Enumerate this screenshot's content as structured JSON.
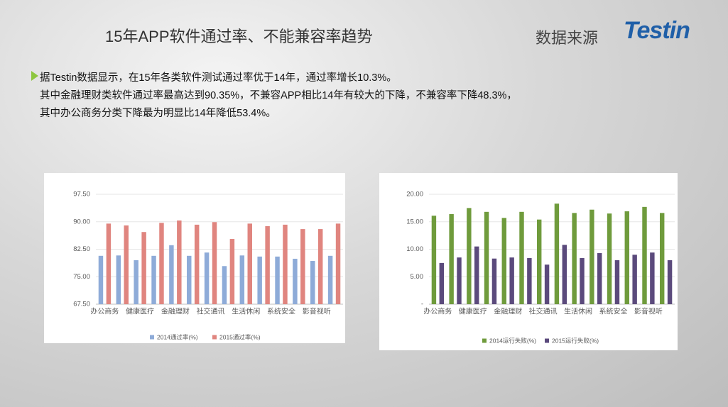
{
  "header": {
    "title": "15年APP软件通过率、不能兼容率趋势",
    "source": "数据来源",
    "logo": "Testin"
  },
  "bullet": [
    "据Testin数据显示，在15年各类软件测试通过率优于14年，通过率增长10.3%。",
    "其中金融理财类软件通过率最高达到90.35%，不兼容APP相比14年有较大的下降，不兼容率下降48.3%，",
    "其中办公商务分类下降最为明显比14年降低53.4%。"
  ],
  "chart_data": [
    {
      "type": "bar",
      "categories": [
        "办公商务",
        null,
        "健康医疗",
        null,
        "金融理财",
        null,
        "社交通讯",
        null,
        "生活休闲",
        null,
        "系统安全",
        null,
        "影音视听",
        null
      ],
      "series": [
        {
          "name": "2014通过率(%)",
          "color": "#8eabd8",
          "values": [
            80.7,
            80.8,
            79.5,
            80.7,
            83.6,
            80.7,
            81.6,
            77.9,
            80.8,
            80.5,
            80.5,
            79.9,
            79.3,
            80.7
          ]
        },
        {
          "name": "2015通过率(%)",
          "color": "#e0857f",
          "values": [
            89.5,
            89.0,
            87.2,
            89.7,
            90.35,
            89.2,
            89.9,
            85.3,
            89.5,
            88.8,
            89.2,
            88.0,
            88.0,
            89.5
          ]
        }
      ],
      "ylim": [
        67.5,
        97.5
      ],
      "yticks": [
        {
          "value": 67.5,
          "label": "67.50"
        },
        {
          "value": 75,
          "label": "75.00"
        },
        {
          "value": 82.5,
          "label": "82.50"
        },
        {
          "value": 90,
          "label": "90.00"
        },
        {
          "value": 97.5,
          "label": "97.50"
        }
      ],
      "grid": true,
      "legend": "bottom"
    },
    {
      "type": "bar",
      "categories": [
        "办公商务",
        null,
        "健康医疗",
        null,
        "金融理财",
        null,
        "社交通讯",
        null,
        "生活休闲",
        null,
        "系统安全",
        null,
        "影音视听",
        null
      ],
      "series": [
        {
          "name": "2014运行失败(%)",
          "color": "#6f9b3c",
          "values": [
            16.1,
            16.4,
            17.5,
            16.8,
            15.7,
            16.8,
            15.4,
            18.3,
            16.6,
            17.2,
            16.5,
            16.9,
            17.7,
            16.6
          ]
        },
        {
          "name": "2015运行失败(%)",
          "color": "#5b4a7c",
          "values": [
            7.5,
            8.5,
            10.5,
            8.3,
            8.5,
            8.4,
            7.2,
            10.8,
            8.4,
            9.3,
            8.0,
            9.0,
            9.4,
            8.0
          ]
        }
      ],
      "ylim": [
        0,
        20
      ],
      "yticks": [
        {
          "value": 0,
          "label": "-"
        },
        {
          "value": 5,
          "label": "5.00"
        },
        {
          "value": 10,
          "label": "10.00"
        },
        {
          "value": 15,
          "label": "15.00"
        },
        {
          "value": 20,
          "label": "20.00"
        }
      ],
      "grid": true,
      "legend": "bottom"
    }
  ]
}
